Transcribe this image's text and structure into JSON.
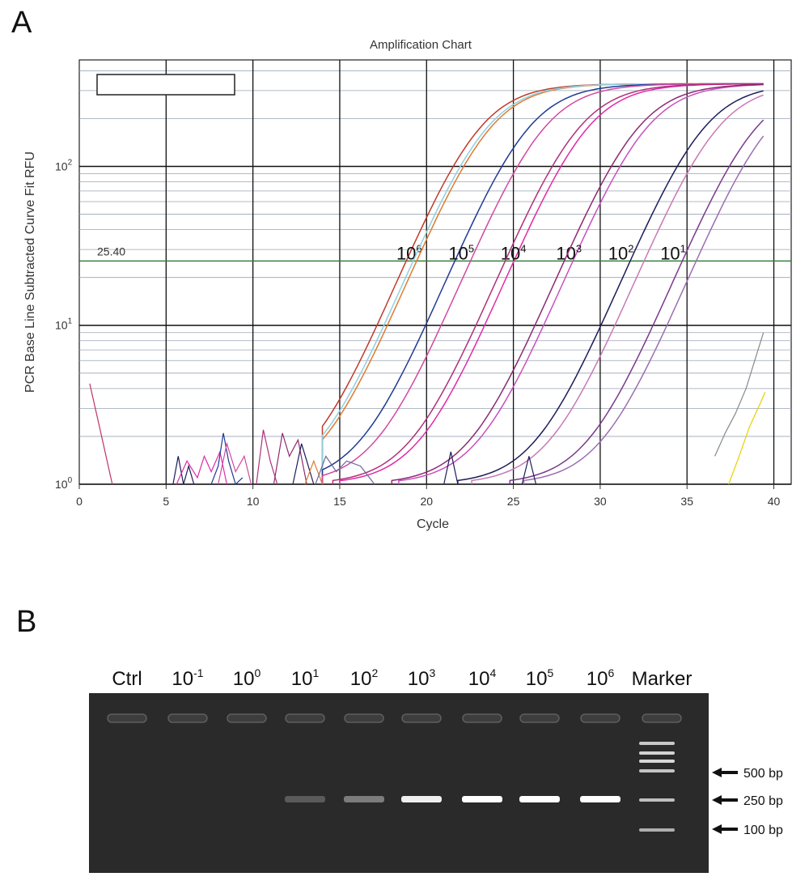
{
  "panels": {
    "a": "A",
    "b": "B"
  },
  "chart_data": [
    {
      "type": "line",
      "title": "Amplification Chart",
      "xlabel": "Cycle",
      "ylabel": "PCR Base Line Subtracted Curve Fit RFU",
      "xlim": [
        0,
        41
      ],
      "ylim_log10": [
        0,
        2.67
      ],
      "yscale": "log",
      "x_ticks": [
        "0",
        "5",
        "10",
        "15",
        "20",
        "25",
        "30",
        "35",
        "40"
      ],
      "y_ticks": [
        {
          "base": "10",
          "exp": "0",
          "log": 0
        },
        {
          "base": "10",
          "exp": "1",
          "log": 1
        },
        {
          "base": "10",
          "exp": "2",
          "log": 2
        }
      ],
      "threshold": {
        "label": "25.40",
        "value": 25.4,
        "color": "#2e7d32"
      },
      "series": [
        {
          "name": "10^6",
          "label_base": "10",
          "label_exp": "6",
          "label_cycle": 19.0,
          "ct": 18.9,
          "color": "#c0392b"
        },
        {
          "name": "10^6",
          "ct": 19.5,
          "color": "#e07a2e"
        },
        {
          "name": "10^6",
          "ct": 19.3,
          "color": "#8fd0e0"
        },
        {
          "name": "10^5",
          "label_base": "10",
          "label_exp": "5",
          "label_cycle": 22.0,
          "ct": 21.7,
          "color": "#1f3a93"
        },
        {
          "name": "10^5",
          "ct": 22.6,
          "color": "#d14aa0"
        },
        {
          "name": "10^4",
          "label_base": "10",
          "label_exp": "4",
          "label_cycle": 25.0,
          "ct": 25.1,
          "color": "#e02aa8"
        },
        {
          "name": "10^4",
          "ct": 24.6,
          "color": "#b0307a"
        },
        {
          "name": "10^3",
          "label_base": "10",
          "label_exp": "3",
          "label_cycle": 28.2,
          "ct": 28.5,
          "color": "#c850c0"
        },
        {
          "name": "10^3",
          "ct": 28.0,
          "color": "#8e2a70"
        },
        {
          "name": "10^2",
          "label_base": "10",
          "label_exp": "2",
          "label_cycle": 31.2,
          "ct": 31.8,
          "color": "#1c1c5a"
        },
        {
          "name": "10^2",
          "ct": 32.6,
          "color": "#c77ab5"
        },
        {
          "name": "10^1",
          "label_base": "10",
          "label_exp": "1",
          "label_cycle": 34.2,
          "ct": 34.8,
          "color": "#7a3a8a"
        },
        {
          "name": "10^1",
          "ct": 35.6,
          "color": "#9b6fb0"
        }
      ],
      "low_series": [
        {
          "color": "#888888",
          "x": [
            36.6,
            37.2,
            37.8,
            38.4,
            38.9,
            39.4
          ],
          "y": [
            1.5,
            2.1,
            2.8,
            4.0,
            6.0,
            9.0
          ]
        },
        {
          "color": "#e6d100",
          "x": [
            37.4,
            38.0,
            38.6,
            39.2,
            39.5
          ],
          "y": [
            1.0,
            1.5,
            2.3,
            3.2,
            3.8
          ]
        }
      ],
      "noise": [
        {
          "color": "#c0306a",
          "x": [
            0.6,
            1.2,
            1.9
          ],
          "y": [
            4.3,
            2.2,
            1.0
          ]
        },
        {
          "color": "#1c1c5a",
          "x": [
            5.4,
            5.7,
            6.0,
            6.3,
            6.6
          ],
          "y": [
            1.0,
            1.5,
            1.0,
            1.3,
            1.0
          ]
        },
        {
          "color": "#e02aa8",
          "x": [
            5.6,
            6.2,
            6.8,
            7.2,
            7.6,
            8.1,
            8.5
          ],
          "y": [
            1.0,
            1.4,
            1.1,
            1.5,
            1.2,
            1.6,
            1.0
          ]
        },
        {
          "color": "#1f3a93",
          "x": [
            7.6,
            8.0,
            8.3,
            8.6,
            9.0,
            9.4
          ],
          "y": [
            1.0,
            1.3,
            2.1,
            1.4,
            1.0,
            1.1
          ]
        },
        {
          "color": "#d14aa0",
          "x": [
            8.0,
            8.5,
            9.0,
            9.5,
            9.9
          ],
          "y": [
            1.0,
            1.8,
            1.2,
            1.5,
            1.0
          ]
        },
        {
          "color": "#b0307a",
          "x": [
            10.2,
            10.6,
            11.0,
            11.4
          ],
          "y": [
            1.0,
            2.2,
            1.4,
            1.0
          ]
        },
        {
          "color": "#8e2a70",
          "x": [
            11.2,
            11.7,
            12.1,
            12.6,
            13.1
          ],
          "y": [
            1.0,
            2.1,
            1.5,
            1.9,
            1.0
          ]
        },
        {
          "color": "#1c1c5a",
          "x": [
            12.3,
            12.8,
            13.1,
            13.5
          ],
          "y": [
            1.0,
            1.8,
            1.4,
            1.0
          ]
        },
        {
          "color": "#e07a2e",
          "x": [
            13.0,
            13.5,
            14.0
          ],
          "y": [
            1.0,
            1.4,
            1.0
          ]
        },
        {
          "color": "#6a6a9a",
          "x": [
            13.6,
            14.2,
            14.8,
            15.4,
            16.2,
            17.0
          ],
          "y": [
            1.0,
            1.5,
            1.2,
            1.4,
            1.3,
            1.0
          ]
        },
        {
          "color": "#1c1c5a",
          "x": [
            21.0,
            21.4,
            21.8
          ],
          "y": [
            1.0,
            1.6,
            1.0
          ]
        },
        {
          "color": "#1c1c5a",
          "x": [
            25.5,
            25.9,
            26.3
          ],
          "y": [
            1.0,
            1.5,
            1.0
          ]
        }
      ]
    },
    {
      "type": "gel",
      "lanes": [
        {
          "base": "Ctrl",
          "exp": "",
          "band": 0
        },
        {
          "base": "10",
          "exp": "-1",
          "band": 0
        },
        {
          "base": "10",
          "exp": "0",
          "band": 0
        },
        {
          "base": "10",
          "exp": "1",
          "band": 0.25
        },
        {
          "base": "10",
          "exp": "2",
          "band": 0.45
        },
        {
          "base": "10",
          "exp": "3",
          "band": 0.95
        },
        {
          "base": "10",
          "exp": "4",
          "band": 1.0
        },
        {
          "base": "10",
          "exp": "5",
          "band": 1.0
        },
        {
          "base": "10",
          "exp": "6",
          "band": 1.0
        },
        {
          "base": "Marker",
          "exp": "",
          "band": 0
        }
      ],
      "marker_sizes": [
        {
          "label": "500 bp",
          "bp": 500
        },
        {
          "label": "250 bp",
          "bp": 250
        },
        {
          "label": "100 bp",
          "bp": 100
        }
      ]
    }
  ]
}
